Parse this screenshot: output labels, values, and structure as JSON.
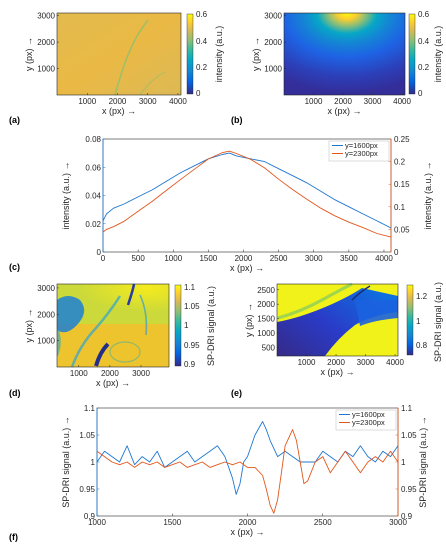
{
  "panel_letters": [
    "(a)",
    "(b)",
    "(c)",
    "(d)",
    "(e)",
    "(f)"
  ],
  "colors": {
    "blue": "#1f77d0",
    "orange": "#e2571c",
    "axis": "#262626",
    "parula": [
      "#352a87",
      "#0363e1",
      "#1485d4",
      "#06a7c6",
      "#38b99e",
      "#92bf73",
      "#d9ba56",
      "#fcce2e",
      "#f9fb0e"
    ]
  },
  "chart_data": [
    {
      "id": "a",
      "type": "heatmap",
      "xlabel": "x (px) →",
      "ylabel": "y (px) →",
      "xticks": [
        1000,
        2000,
        3000,
        4000
      ],
      "yticks": [
        1000,
        2000,
        3000
      ],
      "xlim": [
        0,
        4100
      ],
      "ylim": [
        0,
        3100
      ],
      "colorbar": {
        "label": "intensity (a.u.)",
        "ticks": [
          "0.6",
          "0.4",
          "0.2",
          "0"
        ],
        "range": [
          0,
          0.6
        ]
      },
      "description_level": 0.5
    },
    {
      "id": "b",
      "type": "heatmap",
      "xlabel": "x (px) →",
      "ylabel": "y (px) →",
      "xticks": [
        1000,
        2000,
        3000,
        4000
      ],
      "yticks": [
        1000,
        2000,
        3000
      ],
      "xlim": [
        0,
        4100
      ],
      "ylim": [
        0,
        3100
      ],
      "colorbar": {
        "label": "intensity (a.u.)",
        "ticks": [
          "0.6",
          "0.4",
          "0.2",
          "0"
        ],
        "range": [
          0,
          0.6
        ]
      }
    },
    {
      "id": "c",
      "type": "line",
      "xlabel": "x (px) →",
      "ylabel_left": "intensity (a.u.) →",
      "ylabel_right": "intensity (a.u.) →",
      "xlim": [
        0,
        4100
      ],
      "ylim_left": [
        0,
        0.08
      ],
      "ylim_right": [
        0,
        0.25
      ],
      "xticks": [
        0,
        500,
        1000,
        1500,
        2000,
        2500,
        3000,
        3500,
        4000
      ],
      "yticks_left": [
        "0",
        "0.02",
        "0.04",
        "0.06",
        "0.08"
      ],
      "yticks_left_values": [
        0,
        0.02,
        0.04,
        0.06,
        0.08
      ],
      "yticks_right": [
        "0",
        "0.05",
        "0.1",
        "0.15",
        "0.2",
        "0.25"
      ],
      "yticks_right_values": [
        0,
        0.05,
        0.1,
        0.15,
        0.2,
        0.25
      ],
      "legend": "top-right",
      "series": [
        {
          "name": "y=1600px",
          "axis": "left",
          "x": [
            0,
            50,
            150,
            300,
            500,
            700,
            900,
            1100,
            1300,
            1500,
            1700,
            1800,
            1900,
            2100,
            2300,
            2500,
            2700,
            2900,
            3100,
            3300,
            3500,
            3700,
            3900,
            4100
          ],
          "y": [
            0.022,
            0.027,
            0.031,
            0.034,
            0.039,
            0.044,
            0.05,
            0.056,
            0.061,
            0.066,
            0.069,
            0.07,
            0.068,
            0.066,
            0.064,
            0.059,
            0.054,
            0.049,
            0.043,
            0.037,
            0.032,
            0.027,
            0.022,
            0.017
          ]
        },
        {
          "name": "y=2300px",
          "axis": "right",
          "x": [
            0,
            50,
            150,
            300,
            500,
            700,
            900,
            1100,
            1300,
            1500,
            1700,
            1800,
            1900,
            2100,
            2300,
            2500,
            2700,
            2900,
            3100,
            3300,
            3500,
            3700,
            3900,
            4100
          ],
          "y": [
            0.044,
            0.05,
            0.056,
            0.068,
            0.09,
            0.112,
            0.136,
            0.16,
            0.183,
            0.206,
            0.22,
            0.223,
            0.218,
            0.205,
            0.186,
            0.161,
            0.138,
            0.117,
            0.097,
            0.08,
            0.066,
            0.054,
            0.041,
            0.033
          ]
        }
      ]
    },
    {
      "id": "d",
      "type": "heatmap",
      "xlabel": "x (px) →",
      "ylabel": "y (px) →",
      "xticks": [
        1000,
        2000,
        3000
      ],
      "yticks": [
        1000,
        2000,
        3000
      ],
      "xlim": [
        300,
        3900
      ],
      "ylim": [
        0,
        3150
      ],
      "colorbar": {
        "label": "SP-DRI signal (a.u.)",
        "ticks": [
          "1.1",
          "1.05",
          "1",
          "0.95",
          "0.9"
        ],
        "range": [
          0.9,
          1.1
        ]
      }
    },
    {
      "id": "e",
      "type": "heatmap",
      "xlabel": "x (px) →",
      "ylabel": "y (px) →",
      "xticks": [
        1000,
        2000,
        3000,
        4000
      ],
      "yticks": [
        500,
        1000,
        1500,
        2000,
        2500
      ],
      "xlim": [
        0,
        4100
      ],
      "ylim": [
        200,
        2700
      ],
      "colorbar": {
        "label": "SP-DRI signal (a.u.)",
        "ticks": [
          "1.2",
          "1",
          "0.8"
        ],
        "range": [
          0.7,
          1.3
        ]
      }
    },
    {
      "id": "f",
      "type": "line",
      "xlabel": "x (px) →",
      "ylabel_left": "SP-DRI signal (a.u.) →",
      "ylabel_right": "SP-DRI signal (a.u.) →",
      "xlim": [
        1000,
        3000
      ],
      "ylim_left": [
        0.9,
        1.1
      ],
      "ylim_right": [
        0.9,
        1.1
      ],
      "xticks": [
        1000,
        1500,
        2000,
        2500,
        3000
      ],
      "yticks_left": [
        "0.9",
        "0.95",
        "1",
        "1.05",
        "1.1"
      ],
      "yticks_left_values": [
        0.9,
        0.95,
        1.0,
        1.05,
        1.1
      ],
      "yticks_right": [
        "0.9",
        "0.95",
        "1",
        "1.05",
        "1.1"
      ],
      "yticks_right_values": [
        0.9,
        0.95,
        1.0,
        1.05,
        1.1
      ],
      "legend": "top-right",
      "series": [
        {
          "name": "y=1600px",
          "axis": "left",
          "x": [
            1000,
            1050,
            1100,
            1150,
            1200,
            1250,
            1300,
            1350,
            1400,
            1450,
            1500,
            1550,
            1600,
            1650,
            1700,
            1750,
            1800,
            1850,
            1900,
            1925,
            1950,
            1975,
            2000,
            2050,
            2100,
            2125,
            2150,
            2200,
            2250,
            2300,
            2350,
            2400,
            2450,
            2500,
            2550,
            2600,
            2650,
            2700,
            2750,
            2800,
            2850,
            2900,
            2950,
            3000
          ],
          "y": [
            1.0,
            1.02,
            1.01,
            1.0,
            1.03,
            0.995,
            1.01,
            1.0,
            1.02,
            0.99,
            1.0,
            1.01,
            1.02,
            1.0,
            1.01,
            1.02,
            1.03,
            1.01,
            0.97,
            0.94,
            0.96,
            1.0,
            1.01,
            1.05,
            1.075,
            1.06,
            1.04,
            1.01,
            1.02,
            1.01,
            1.0,
            1.0,
            1.0,
            1.02,
            1.01,
            1.0,
            1.02,
            1.01,
            1.03,
            1.01,
            1.0,
            1.02,
            1.01,
            1.03
          ]
        },
        {
          "name": "y=2300px",
          "axis": "right",
          "x": [
            1000,
            1050,
            1100,
            1150,
            1200,
            1250,
            1300,
            1350,
            1400,
            1450,
            1500,
            1550,
            1600,
            1650,
            1700,
            1750,
            1800,
            1850,
            1900,
            1950,
            2000,
            2050,
            2100,
            2125,
            2150,
            2175,
            2200,
            2225,
            2250,
            2300,
            2325,
            2350,
            2375,
            2400,
            2450,
            2500,
            2550,
            2600,
            2650,
            2700,
            2750,
            2800,
            2850,
            2900,
            2950,
            3000
          ],
          "y": [
            1.02,
            1.01,
            1.0,
            0.995,
            1.0,
            0.99,
            1.0,
            0.995,
            1.0,
            0.99,
            0.995,
            1.0,
            0.99,
            0.995,
            1.0,
            0.99,
            0.995,
            1.0,
            0.995,
            1.0,
            0.99,
            0.99,
            0.975,
            0.95,
            0.92,
            0.905,
            0.93,
            0.98,
            1.03,
            1.06,
            1.04,
            1.0,
            0.96,
            0.965,
            1.0,
            1.01,
            0.98,
            1.0,
            1.02,
            1.0,
            0.98,
            1.0,
            1.01,
            1.0,
            1.02,
            1.0
          ]
        }
      ]
    }
  ]
}
